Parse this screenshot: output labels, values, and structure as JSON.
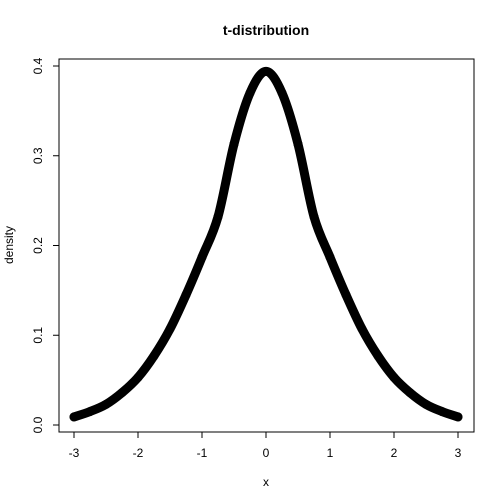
{
  "chart_data": {
    "type": "scatter",
    "title": "t-distribution",
    "xlabel": "x",
    "ylabel": "density",
    "xlim": [
      -3,
      3
    ],
    "ylim": [
      0,
      0.4
    ],
    "x_ticks": [
      "-3",
      "-2",
      "-1",
      "0",
      "1",
      "2",
      "3"
    ],
    "y_ticks": [
      "0.0",
      "0.1",
      "0.2",
      "0.3",
      "0.4"
    ],
    "grid": false,
    "legend": "none",
    "marker_color": "#000000",
    "series": [
      {
        "x": [
          -3,
          -2.75,
          -2.5,
          -2.25,
          -2,
          -1.75,
          -1.5,
          -1.25,
          -1,
          -0.75,
          -0.5,
          -0.25,
          0,
          0.25,
          0.5,
          0.75,
          1,
          1.25,
          1.5,
          1.75,
          2,
          2.25,
          2.5,
          2.75,
          3
        ],
        "values": [
          0.009,
          0.015,
          0.023,
          0.036,
          0.053,
          0.077,
          0.107,
          0.145,
          0.187,
          0.232,
          0.313,
          0.37,
          0.394,
          0.37,
          0.313,
          0.232,
          0.187,
          0.145,
          0.107,
          0.077,
          0.053,
          0.036,
          0.023,
          0.015,
          0.009
        ]
      }
    ]
  }
}
